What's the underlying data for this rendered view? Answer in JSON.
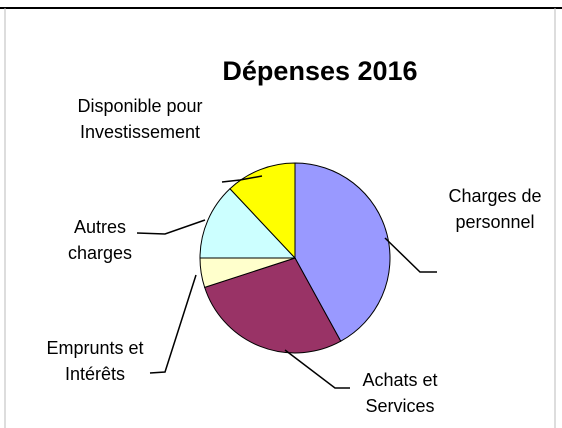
{
  "chart_data": {
    "type": "pie",
    "title": "Dépenses 2016",
    "categories": [
      "Charges de personnel",
      "Achats et Services",
      "Emprunts et Intérêts",
      "Autres charges",
      "Disponible pour Investissement"
    ],
    "values": [
      42,
      28,
      5,
      13,
      12
    ],
    "colors": [
      "#9999ff",
      "#993366",
      "#ffffcc",
      "#ccffff",
      "#ffff00"
    ]
  }
}
